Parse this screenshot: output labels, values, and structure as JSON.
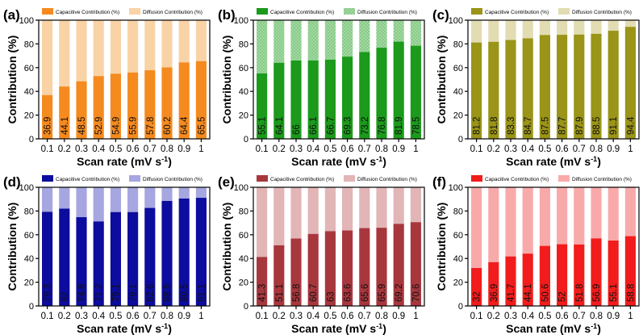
{
  "figure": {
    "common": {
      "type": "bar",
      "stacked": true,
      "categories": [
        "0.1",
        "0.2",
        "0.3",
        "0.4",
        "0.5",
        "0.6",
        "0.7",
        "0.8",
        "0.9",
        "1"
      ],
      "xlabel_main": "Scan rate (mV s",
      "xlabel_sup": "-1",
      "xlabel_close": ")",
      "ylabel": "Contribution (%)",
      "ylim": [
        0,
        100
      ],
      "yticks": [
        "0",
        "20",
        "40",
        "60",
        "80",
        "100"
      ],
      "legend_placement": "top",
      "series_names": [
        "Capacitive Contribution (%)",
        "Diffusion Contribution (%)"
      ]
    },
    "panels": [
      {
        "label": "(a)",
        "chart_data": {
          "type": "bar",
          "series": [
            {
              "name": "Capacitive Contribution (%)",
              "values": [
                36.9,
                44.1,
                48.5,
                52.9,
                54.9,
                55.9,
                57.8,
                60.2,
                64.4,
                65.5
              ]
            },
            {
              "name": "Diffusion Contribution (%)",
              "values": [
                63.1,
                55.9,
                51.5,
                47.1,
                45.1,
                44.1,
                42.2,
                39.8,
                35.6,
                34.5
              ]
            }
          ],
          "data_labels": [
            "36.9",
            "44.1",
            "48.5",
            "52.9",
            "54.9",
            "55.9",
            "57.8",
            "60.2",
            "64.4",
            "65.5"
          ]
        },
        "colors": {
          "capacitive": "#f58a1f",
          "diffusion": "#f9d3a6"
        },
        "pattern": false
      },
      {
        "label": "(b)",
        "chart_data": {
          "type": "bar",
          "series": [
            {
              "name": "Capacitive Contribution (%)",
              "values": [
                55.1,
                64.1,
                66,
                66.1,
                66.7,
                69.3,
                73.2,
                76.8,
                81.9,
                78.5
              ]
            },
            {
              "name": "Diffusion Contribution (%)",
              "values": [
                44.9,
                35.9,
                34,
                33.9,
                33.3,
                30.7,
                26.8,
                23.2,
                18.1,
                21.5
              ]
            }
          ],
          "data_labels": [
            "55.1",
            "64.1",
            "66",
            "66.1",
            "66.7",
            "69.3",
            "73.2",
            "76.8",
            "81.9",
            "78.5"
          ]
        },
        "colors": {
          "capacitive": "#1b9a1b",
          "diffusion": "#a3d8a3"
        },
        "pattern": true
      },
      {
        "label": "(c)",
        "chart_data": {
          "type": "bar",
          "series": [
            {
              "name": "Capacitive Contribution (%)",
              "values": [
                81.2,
                81.8,
                83.3,
                84.7,
                87.5,
                87.7,
                87.9,
                88.5,
                91.1,
                94.4
              ]
            },
            {
              "name": "Diffusion Contribution (%)",
              "values": [
                18.8,
                18.2,
                16.7,
                15.3,
                12.5,
                12.3,
                12.1,
                11.5,
                8.9,
                5.6
              ]
            }
          ],
          "data_labels": [
            "81.2",
            "81.8",
            "83.3",
            "84.7",
            "87.5",
            "87.7",
            "87.9",
            "88.5",
            "91.1",
            "94.4"
          ]
        },
        "colors": {
          "capacitive": "#9a9418",
          "diffusion": "#e2dcb2"
        },
        "pattern": false
      },
      {
        "label": "(d)",
        "chart_data": {
          "type": "bar",
          "series": [
            {
              "name": "Capacitive Contribution (%)",
              "values": [
                79.3,
                82,
                74.8,
                71.2,
                79.1,
                79.1,
                82.6,
                88.5,
                90.5,
                91.1
              ]
            },
            {
              "name": "Diffusion Contribution (%)",
              "values": [
                20.7,
                18,
                25.2,
                28.8,
                20.9,
                20.9,
                17.4,
                11.5,
                9.5,
                8.9
              ]
            }
          ],
          "data_labels": [
            "79.3",
            "82",
            "74.8",
            "71.2",
            "79.1",
            "79.1",
            "82.6",
            "88.5",
            "90.5",
            "91.1"
          ]
        },
        "colors": {
          "capacitive": "#0c0c9e",
          "diffusion": "#a6a6e0"
        },
        "pattern": false
      },
      {
        "label": "(e)",
        "chart_data": {
          "type": "bar",
          "series": [
            {
              "name": "Capacitive Contribution (%)",
              "values": [
                41.3,
                51.1,
                56.8,
                60.7,
                63,
                63.6,
                65.6,
                65.9,
                69.2,
                70.6
              ]
            },
            {
              "name": "Diffusion Contribution (%)",
              "values": [
                58.7,
                48.9,
                43.2,
                39.3,
                37,
                36.4,
                34.4,
                34.1,
                30.8,
                29.4
              ]
            }
          ],
          "data_labels": [
            "41.3",
            "51.1",
            "56.8",
            "60.7",
            "63",
            "63.6",
            "65.6",
            "65.9",
            "69.2",
            "70.6"
          ]
        },
        "colors": {
          "capacitive": "#a8373d",
          "diffusion": "#e2b5b6"
        },
        "pattern": false
      },
      {
        "label": "(f)",
        "chart_data": {
          "type": "bar",
          "series": [
            {
              "name": "Capacitive Contribution (%)",
              "values": [
                32,
                36.9,
                41.7,
                44.1,
                50.6,
                52,
                51.8,
                56.9,
                55.1,
                58.8
              ]
            },
            {
              "name": "Diffusion Contribution (%)",
              "values": [
                68,
                63.1,
                58.3,
                55.9,
                49.4,
                48,
                48.2,
                43.1,
                44.9,
                41.2
              ]
            }
          ],
          "data_labels": [
            "32",
            "36.9",
            "41.7",
            "44.1",
            "50.6",
            "52",
            "51.8",
            "56.9",
            "55.1",
            "58.8"
          ]
        },
        "colors": {
          "capacitive": "#f21c1c",
          "diffusion": "#f8aaaa"
        },
        "pattern": false
      }
    ]
  }
}
